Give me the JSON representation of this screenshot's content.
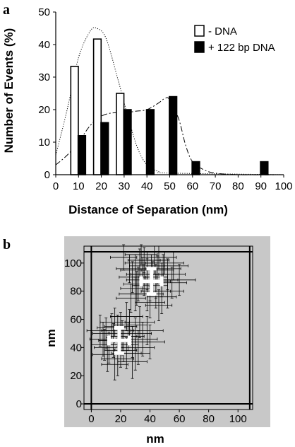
{
  "chart_data": [
    {
      "panel": "a",
      "type": "bar",
      "xlabel": "Distance of Separation (nm)",
      "ylabel": "Number of Events (%)",
      "xlim": [
        0,
        100
      ],
      "ylim": [
        0,
        50
      ],
      "x_ticks": [
        0,
        10,
        20,
        30,
        40,
        50,
        60,
        70,
        80,
        90,
        100
      ],
      "y_ticks": [
        0,
        10,
        20,
        30,
        40,
        50
      ],
      "legend_position": "top-right",
      "series": [
        {
          "name": "- DNA",
          "style": "open",
          "fill": "#ffffff",
          "line": "dotted",
          "x": [
            10,
            20,
            30
          ],
          "values": [
            33.3,
            41.7,
            25
          ],
          "fit": [
            [
              0,
              6
            ],
            [
              5,
              20
            ],
            [
              10,
              36
            ],
            [
              15,
              44
            ],
            [
              18,
              45
            ],
            [
              22,
              42
            ],
            [
              27,
              30
            ],
            [
              32,
              17
            ],
            [
              36,
              8
            ],
            [
              40,
              3
            ],
            [
              45,
              1
            ],
            [
              50,
              0.5
            ],
            [
              100,
              0
            ]
          ]
        },
        {
          "name": "+ 122 bp DNA",
          "style": "filled",
          "fill": "#000000",
          "line": "dash-dot",
          "x": [
            10,
            20,
            30,
            40,
            50,
            60,
            90
          ],
          "values": [
            12,
            16,
            20,
            20,
            24,
            4,
            4
          ],
          "fit": [
            [
              0,
              3
            ],
            [
              5,
              6
            ],
            [
              10,
              10
            ],
            [
              15,
              15
            ],
            [
              20,
              18
            ],
            [
              25,
              19
            ],
            [
              30,
              19
            ],
            [
              35,
              19.5
            ],
            [
              40,
              20
            ],
            [
              45,
              22
            ],
            [
              48,
              23.5
            ],
            [
              50,
              23
            ],
            [
              54,
              17
            ],
            [
              57,
              9
            ],
            [
              60,
              4
            ],
            [
              65,
              1.5
            ],
            [
              70,
              0.5
            ],
            [
              80,
              0
            ],
            [
              100,
              0
            ]
          ]
        }
      ]
    },
    {
      "panel": "b",
      "type": "scatter",
      "xlabel": "nm",
      "ylabel": "nm",
      "xlim": [
        -5,
        110
      ],
      "ylim": [
        -4,
        112
      ],
      "x_ticks": [
        0,
        20,
        40,
        60,
        80,
        100
      ],
      "y_ticks": [
        0,
        20,
        40,
        60,
        80,
        100
      ],
      "background": "#c8c8c8",
      "error_color": "#000000",
      "mean_color": "#ffffff",
      "reference_lines": {
        "x": [
          0,
          108
        ],
        "y": [
          0,
          108
        ]
      },
      "points": [
        [
          30,
          95,
          10,
          11
        ],
        [
          35,
          92,
          11,
          12
        ],
        [
          38,
          98,
          12,
          10
        ],
        [
          42,
          90,
          10,
          11
        ],
        [
          45,
          95,
          11,
          10
        ],
        [
          32,
          85,
          10,
          12
        ],
        [
          40,
          84,
          12,
          11
        ],
        [
          48,
          88,
          11,
          12
        ],
        [
          50,
          100,
          13,
          8
        ],
        [
          36,
          102,
          11,
          9
        ],
        [
          28,
          90,
          9,
          11
        ],
        [
          44,
          80,
          10,
          12
        ],
        [
          52,
          92,
          12,
          11
        ],
        [
          38,
          78,
          11,
          12
        ],
        [
          33,
          100,
          10,
          10
        ],
        [
          46,
          104,
          12,
          8
        ],
        [
          41,
          96,
          11,
          10
        ],
        [
          55,
          86,
          10,
          11
        ],
        [
          30,
          78,
          11,
          12
        ],
        [
          48,
          76,
          10,
          12
        ],
        [
          36,
          88,
          12,
          11
        ],
        [
          43,
          102,
          10,
          10
        ],
        [
          26,
          96,
          9,
          10
        ],
        [
          52,
          80,
          11,
          12
        ],
        [
          40,
          72,
          10,
          11
        ],
        [
          34,
          106,
          11,
          7
        ],
        [
          49,
          96,
          12,
          10
        ],
        [
          38,
          92,
          11,
          11
        ],
        [
          44,
          87,
          10,
          12
        ],
        [
          31,
          82,
          11,
          12
        ],
        [
          56,
          98,
          10,
          10
        ],
        [
          22,
          104,
          9,
          9
        ],
        [
          60,
          88,
          11,
          11
        ],
        [
          27,
          75,
          10,
          10
        ],
        [
          46,
          70,
          9,
          11
        ],
        [
          10,
          50,
          9,
          11
        ],
        [
          15,
          45,
          10,
          12
        ],
        [
          18,
          52,
          11,
          11
        ],
        [
          22,
          42,
          10,
          12
        ],
        [
          25,
          48,
          11,
          10
        ],
        [
          12,
          40,
          10,
          11
        ],
        [
          20,
          38,
          11,
          12
        ],
        [
          28,
          44,
          12,
          11
        ],
        [
          30,
          50,
          11,
          11
        ],
        [
          16,
          58,
          10,
          10
        ],
        [
          8,
          46,
          9,
          12
        ],
        [
          24,
          36,
          10,
          11
        ],
        [
          32,
          40,
          11,
          12
        ],
        [
          18,
          32,
          11,
          12
        ],
        [
          14,
          54,
          10,
          10
        ],
        [
          26,
          56,
          12,
          11
        ],
        [
          35,
          46,
          10,
          12
        ],
        [
          6,
          52,
          9,
          11
        ],
        [
          21,
          48,
          10,
          11
        ],
        [
          28,
          30,
          10,
          12
        ],
        [
          38,
          52,
          11,
          10
        ],
        [
          11,
          35,
          10,
          12
        ],
        [
          24,
          62,
          11,
          10
        ],
        [
          16,
          28,
          9,
          11
        ],
        [
          33,
          58,
          10,
          11
        ],
        [
          40,
          44,
          10,
          12
        ],
        [
          20,
          55,
          11,
          10
        ],
        [
          9,
          42,
          9,
          11
        ],
        [
          30,
          36,
          10,
          12
        ]
      ],
      "means": [
        {
          "x": 41,
          "y": 87,
          "sdx": 7,
          "sdy": 9
        },
        {
          "x": 19,
          "y": 45,
          "sdx": 7,
          "sdy": 9
        }
      ]
    }
  ]
}
